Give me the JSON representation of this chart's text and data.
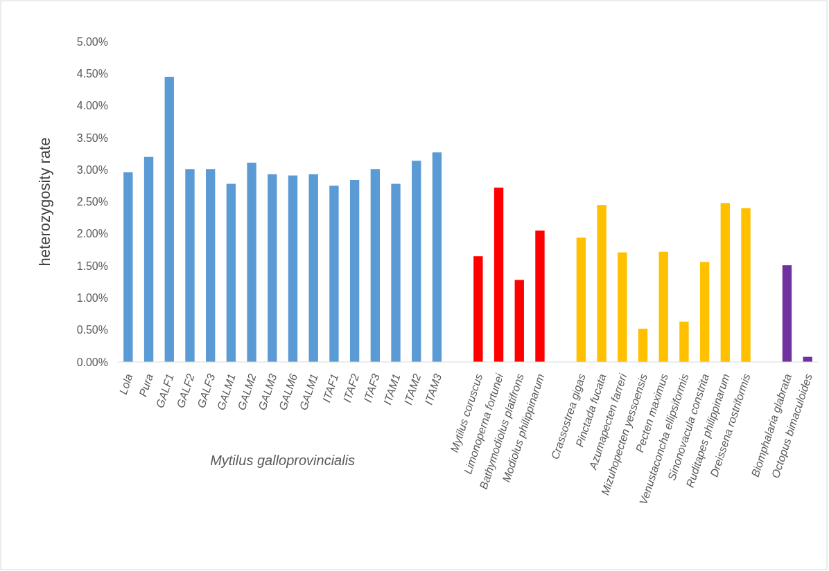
{
  "chart_data": {
    "type": "bar",
    "ylabel": "heterozygosity rate",
    "xlabel": "Mytilus galloprovincialis",
    "categories": [
      "Lola",
      "Pura",
      "GALF1",
      "GALF2",
      "GALF3",
      "GALM1",
      "GALM2",
      "GALM3",
      "GALM6",
      "GALM1",
      "ITAF1",
      "ITAF2",
      "ITAF3",
      "ITAM1",
      "ITAM2",
      "ITAM3",
      null,
      "Mytilus coruscus",
      "Limonoperna fortunei",
      "Bathymodiolus platifrons",
      "Modiolus philippinarum",
      null,
      "Crassostrea gigas",
      "Pinctada fucata",
      "Azumapecten farreri",
      "Mizuhopecten yessoensis",
      "Pecten maximus",
      "Venustaconcha ellipsiformis",
      "Sinonovacula constrita",
      "Ruditapes philippinarum",
      "Dreissena rostriformis",
      null,
      "Biomphalaria glabrata",
      "Octopus bimaculoides"
    ],
    "values": [
      2.96,
      3.2,
      4.45,
      3.01,
      3.01,
      2.78,
      3.11,
      2.93,
      2.91,
      2.93,
      2.75,
      2.84,
      3.01,
      2.78,
      3.14,
      3.27,
      null,
      1.65,
      2.72,
      1.28,
      2.05,
      null,
      1.94,
      2.45,
      1.71,
      0.52,
      1.72,
      0.63,
      1.56,
      2.48,
      2.4,
      null,
      1.51,
      0.08
    ],
    "colors": [
      "#5b9bd5",
      "#5b9bd5",
      "#5b9bd5",
      "#5b9bd5",
      "#5b9bd5",
      "#5b9bd5",
      "#5b9bd5",
      "#5b9bd5",
      "#5b9bd5",
      "#5b9bd5",
      "#5b9bd5",
      "#5b9bd5",
      "#5b9bd5",
      "#5b9bd5",
      "#5b9bd5",
      "#5b9bd5",
      null,
      "#ff0000",
      "#ff0000",
      "#ff0000",
      "#ff0000",
      null,
      "#ffc000",
      "#ffc000",
      "#ffc000",
      "#ffc000",
      "#ffc000",
      "#ffc000",
      "#ffc000",
      "#ffc000",
      "#ffc000",
      null,
      "#7030a0",
      "#7030a0"
    ],
    "ylim": [
      0,
      5
    ],
    "yticks": [
      {
        "value": 0,
        "label": "0.00%"
      },
      {
        "value": 0.5,
        "label": "0.50%"
      },
      {
        "value": 1,
        "label": "1.00%"
      },
      {
        "value": 1.5,
        "label": "1.50%"
      },
      {
        "value": 2,
        "label": "2.00%"
      },
      {
        "value": 2.5,
        "label": "2.50%"
      },
      {
        "value": 3,
        "label": "3.00%"
      },
      {
        "value": 3.5,
        "label": "3.50%"
      },
      {
        "value": 4,
        "label": "4.00%"
      },
      {
        "value": 4.5,
        "label": "4.50%"
      },
      {
        "value": 5,
        "label": "5.00%"
      }
    ]
  }
}
